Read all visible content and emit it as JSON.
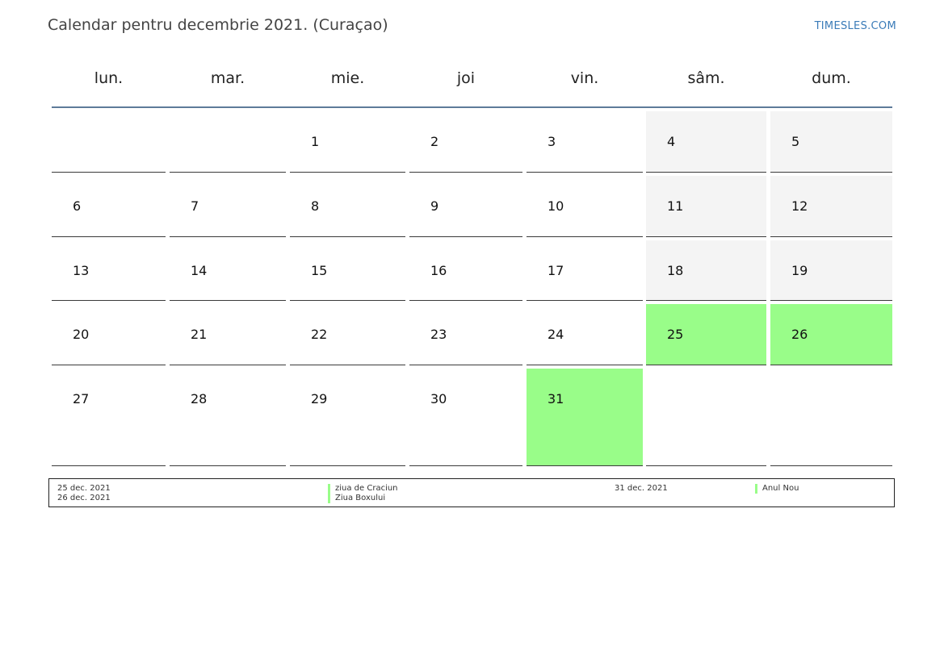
{
  "header": {
    "title": "Calendar pentru decembrie 2021. (Curaçao)",
    "brand": "TIMESLES.COM"
  },
  "weekdays": [
    "lun.",
    "mar.",
    "mie.",
    "joi",
    "vin.",
    "sâm.",
    "dum."
  ],
  "weeks": [
    [
      {
        "day": ""
      },
      {
        "day": ""
      },
      {
        "day": "1"
      },
      {
        "day": "2"
      },
      {
        "day": "3"
      },
      {
        "day": "4",
        "type": "weekend"
      },
      {
        "day": "5",
        "type": "weekend"
      }
    ],
    [
      {
        "day": "6"
      },
      {
        "day": "7"
      },
      {
        "day": "8"
      },
      {
        "day": "9"
      },
      {
        "day": "10"
      },
      {
        "day": "11",
        "type": "weekend"
      },
      {
        "day": "12",
        "type": "weekend"
      }
    ],
    [
      {
        "day": "13"
      },
      {
        "day": "14"
      },
      {
        "day": "15"
      },
      {
        "day": "16"
      },
      {
        "day": "17"
      },
      {
        "day": "18",
        "type": "weekend"
      },
      {
        "day": "19",
        "type": "weekend"
      }
    ],
    [
      {
        "day": "20"
      },
      {
        "day": "21"
      },
      {
        "day": "22"
      },
      {
        "day": "23"
      },
      {
        "day": "24"
      },
      {
        "day": "25",
        "type": "holiday"
      },
      {
        "day": "26",
        "type": "holiday"
      }
    ],
    [
      {
        "day": "27"
      },
      {
        "day": "28"
      },
      {
        "day": "29"
      },
      {
        "day": "30"
      },
      {
        "day": "31",
        "type": "holiday"
      },
      {
        "day": "",
        "type": "empty"
      },
      {
        "day": "",
        "type": "empty"
      }
    ]
  ],
  "legend": [
    {
      "date": "25 dec. 2021",
      "name": "ziua de Craciun"
    },
    {
      "date": "26 dec. 2021",
      "name": "Ziua Boxului"
    },
    {
      "date": "31 dec. 2021",
      "name": "Anul Nou"
    }
  ],
  "colors": {
    "holiday": "#99fd89",
    "weekend": "#f4f4f4",
    "header_rule": "#5e7b99",
    "brand": "#3a7bb8"
  }
}
